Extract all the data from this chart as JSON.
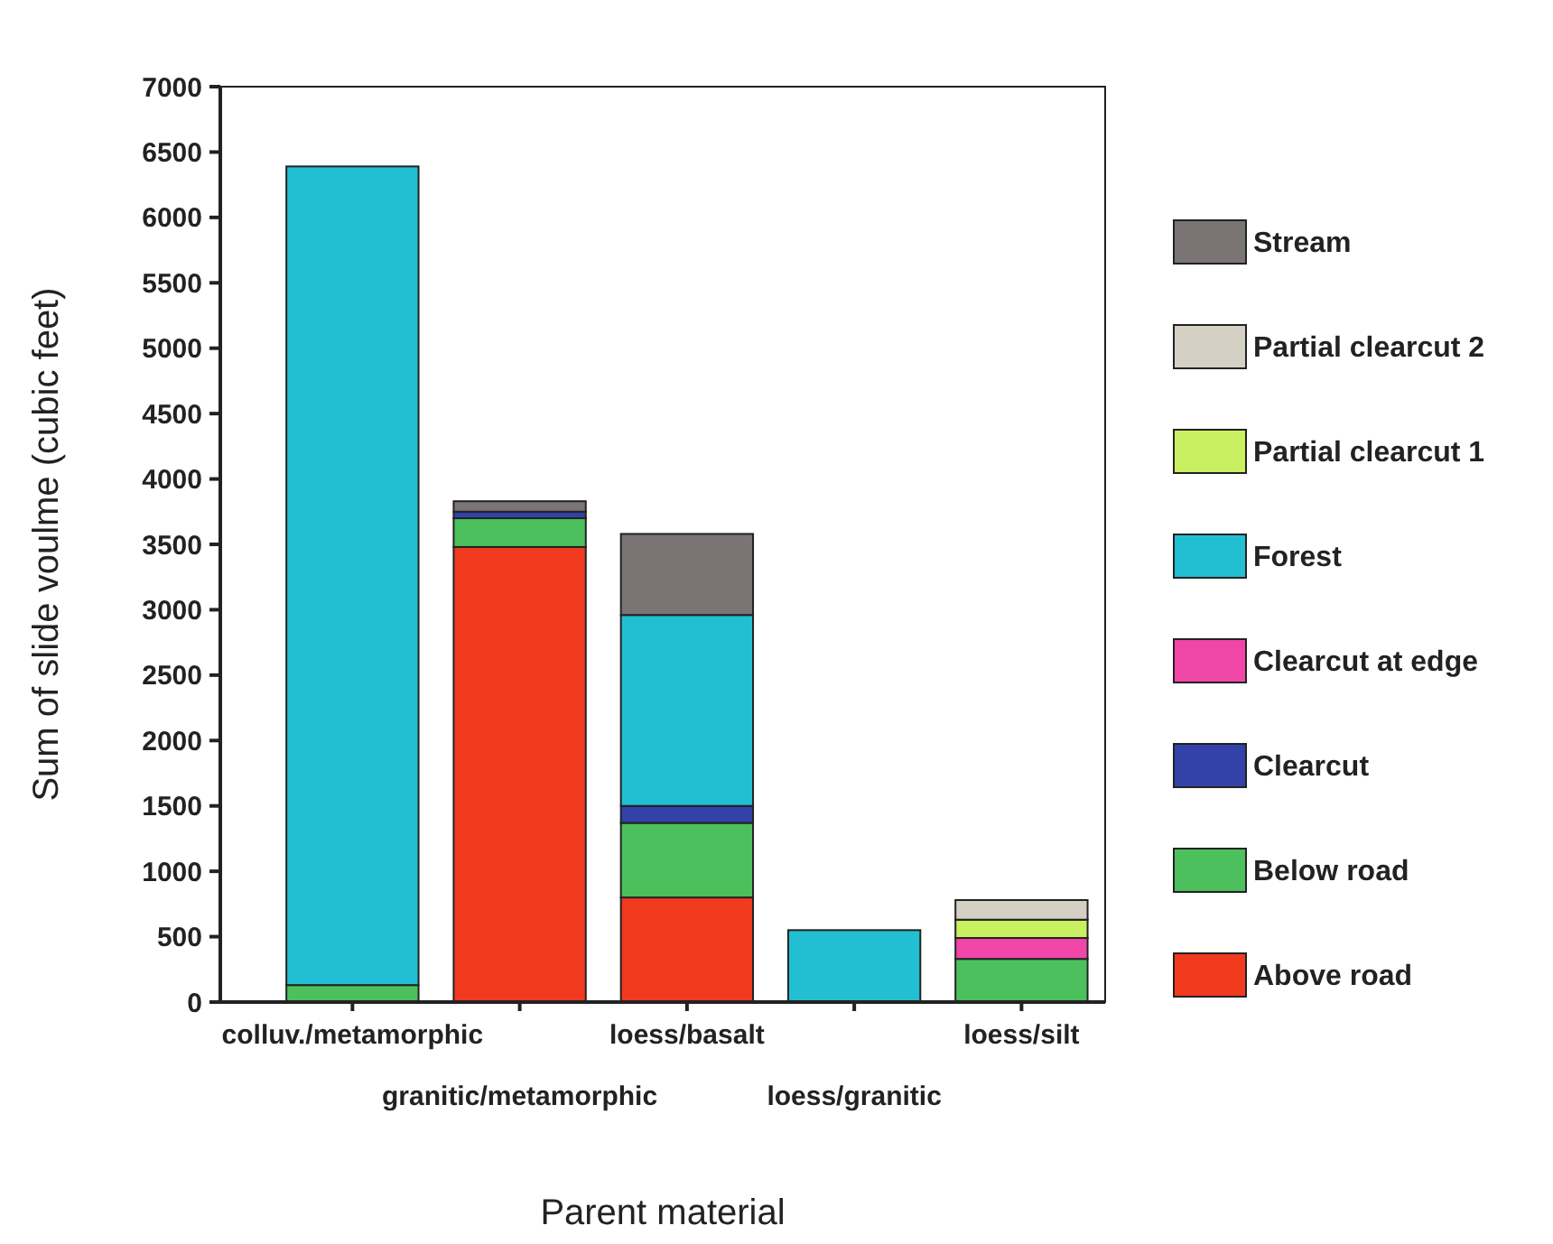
{
  "chart_data": {
    "type": "bar",
    "stacked": true,
    "xlabel": "Parent material",
    "ylabel": "Sum of slide voulme (cubic feet)",
    "categories": [
      "colluv./metamorphic",
      "granitic/metamorphic",
      "loess/basalt",
      "loess/granitic",
      "loess/silt"
    ],
    "series": [
      {
        "name": "Above road",
        "color": "#f23a1e",
        "values": [
          0,
          3480,
          800,
          0,
          0
        ]
      },
      {
        "name": "Below road",
        "color": "#4cc05c",
        "values": [
          130,
          220,
          570,
          0,
          330
        ]
      },
      {
        "name": "Clearcut",
        "color": "#3342a8",
        "values": [
          0,
          50,
          130,
          0,
          0
        ]
      },
      {
        "name": "Clearcut at edge",
        "color": "#f046a8",
        "values": [
          0,
          0,
          0,
          0,
          160
        ]
      },
      {
        "name": "Forest",
        "color": "#22bfd3",
        "values": [
          6260,
          0,
          1460,
          550,
          0
        ]
      },
      {
        "name": "Partial clearcut 1",
        "color": "#c8f060",
        "values": [
          0,
          0,
          0,
          0,
          140
        ]
      },
      {
        "name": "Partial clearcut 2",
        "color": "#d4d0c4",
        "values": [
          0,
          0,
          0,
          0,
          150
        ]
      },
      {
        "name": "Stream",
        "color": "#7a7474",
        "values": [
          0,
          80,
          620,
          0,
          0
        ]
      }
    ],
    "ylim": [
      0,
      7000
    ],
    "yticks": [
      0,
      500,
      1000,
      1500,
      2000,
      2500,
      3000,
      3500,
      4000,
      4500,
      5000,
      5500,
      6000,
      6500,
      7000
    ],
    "legend": "right"
  }
}
